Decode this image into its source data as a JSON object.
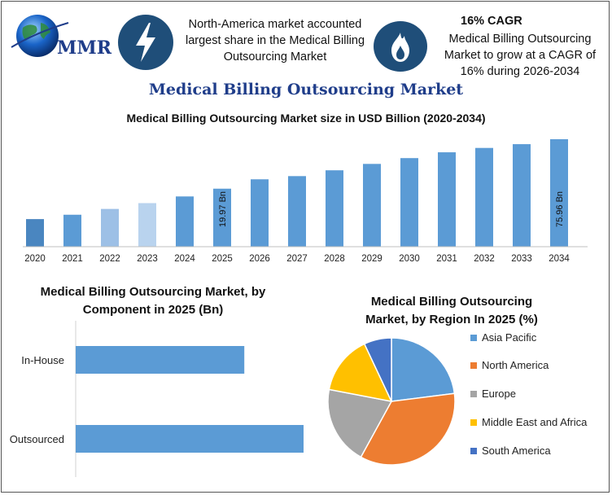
{
  "header": {
    "logo_text": "MMR",
    "north_america_text": "North-America market accounted largest share in the Medical Billing Outsourcing Market",
    "cagr_title": "16% CAGR",
    "cagr_text": "Medical Billing Outsourcing Market to grow at a CAGR of 16% during 2026-2034",
    "icons": [
      "globe-icon",
      "lightning-icon",
      "flame-icon"
    ]
  },
  "main_title": "Medical Billing Outsourcing Market",
  "colors": {
    "bar": "#5b9bd5",
    "bar_dark": "#4a86c0",
    "bar_light": "#9dc0e6",
    "bar_lighter": "#b9d3ee",
    "brand": "#1f3d8a",
    "icon_bg": "#1f4e79"
  },
  "chart_data": [
    {
      "type": "bar",
      "title": "Medical Billing Outsourcing Market size in USD Billion (2020-2034)",
      "categories": [
        "2020",
        "2021",
        "2022",
        "2023",
        "2024",
        "2025",
        "2026",
        "2027",
        "2028",
        "2029",
        "2030",
        "2031",
        "2032",
        "2033",
        "2034"
      ],
      "values": [
        9.5,
        11.0,
        13.0,
        15.0,
        17.3,
        19.97,
        23.2,
        24.3,
        26.3,
        28.5,
        30.5,
        32.5,
        34.0,
        35.3,
        75.96
      ],
      "data_labels": {
        "2025": "19.97 Bn",
        "2034": "75.96 Bn"
      },
      "xlabel": "",
      "ylabel": "",
      "grid": false
    },
    {
      "type": "bar",
      "orientation": "horizontal",
      "title": "Medical Billing Outsourcing Market, by Component in 2025 (Bn)",
      "categories": [
        "In-House",
        "Outsourced"
      ],
      "values": [
        7.4,
        10.0
      ],
      "grid": false
    },
    {
      "type": "pie",
      "title": "Medical Billing Outsourcing Market, by Region In 2025 (%)",
      "categories": [
        "Asia Pacific",
        "North America",
        "Europe",
        "Middle East and Africa",
        "South America"
      ],
      "values": [
        23,
        35,
        20,
        15,
        7
      ],
      "colors": [
        "#5b9bd5",
        "#ed7d31",
        "#a5a5a5",
        "#ffc000",
        "#4472c4"
      ],
      "legend_position": "right"
    }
  ]
}
